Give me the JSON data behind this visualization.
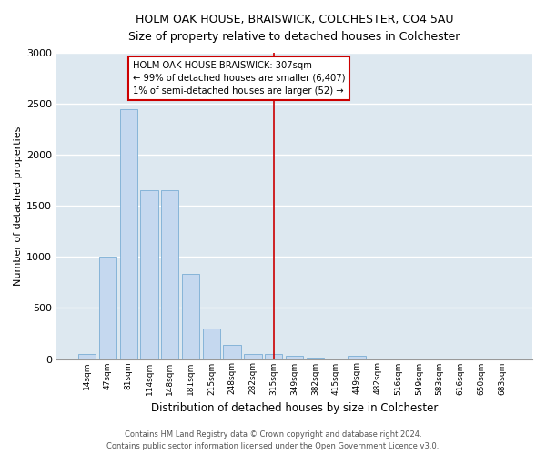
{
  "title1": "HOLM OAK HOUSE, BRAISWICK, COLCHESTER, CO4 5AU",
  "title2": "Size of property relative to detached houses in Colchester",
  "xlabel": "Distribution of detached houses by size in Colchester",
  "ylabel": "Number of detached properties",
  "categories": [
    "14sqm",
    "47sqm",
    "81sqm",
    "114sqm",
    "148sqm",
    "181sqm",
    "215sqm",
    "248sqm",
    "282sqm",
    "315sqm",
    "349sqm",
    "382sqm",
    "415sqm",
    "449sqm",
    "482sqm",
    "516sqm",
    "549sqm",
    "583sqm",
    "616sqm",
    "650sqm",
    "683sqm"
  ],
  "values": [
    52,
    1000,
    2450,
    1655,
    1655,
    835,
    300,
    140,
    52,
    52,
    28,
    14,
    0,
    28,
    0,
    0,
    0,
    0,
    0,
    0,
    0
  ],
  "bar_color": "#c5d8ef",
  "bar_edge_color": "#7aadd4",
  "background_color": "#dde8f0",
  "grid_color": "#ffffff",
  "vline_x_index": 9,
  "vline_color": "#cc0000",
  "annotation_line1": "HOLM OAK HOUSE BRAISWICK: 307sqm",
  "annotation_line2": "← 99% of detached houses are smaller (6,407)",
  "annotation_line3": "1% of semi-detached houses are larger (52) →",
  "annotation_box_color": "#cc0000",
  "ylim": [
    0,
    3000
  ],
  "yticks": [
    0,
    500,
    1000,
    1500,
    2000,
    2500,
    3000
  ],
  "footer1": "Contains HM Land Registry data © Crown copyright and database right 2024.",
  "footer2": "Contains public sector information licensed under the Open Government Licence v3.0."
}
